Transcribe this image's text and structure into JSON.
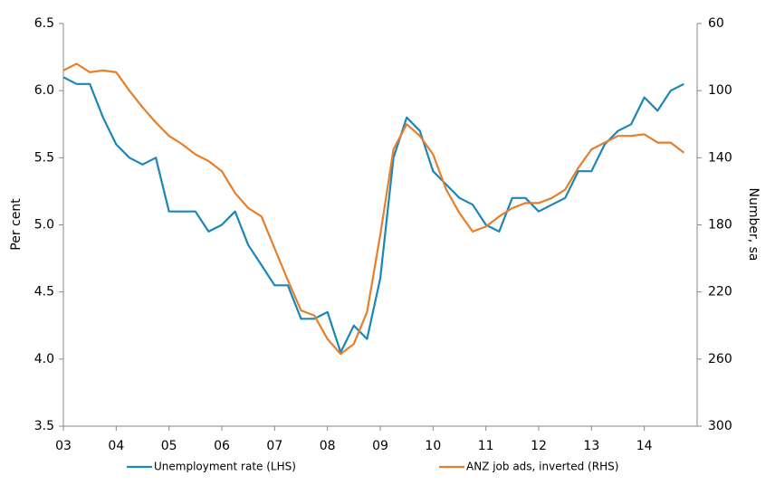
{
  "chart_data": {
    "type": "line",
    "y_label": "Per cent",
    "y2_label": "Number, sa",
    "x": [
      2003,
      2003.25,
      2003.5,
      2003.75,
      2004,
      2004.25,
      2004.5,
      2004.75,
      2005,
      2005.25,
      2005.5,
      2005.75,
      2006,
      2006.25,
      2006.5,
      2006.75,
      2007,
      2007.25,
      2007.5,
      2007.75,
      2008,
      2008.25,
      2008.5,
      2008.75,
      2009,
      2009.25,
      2009.5,
      2009.75,
      2010,
      2010.25,
      2010.5,
      2010.75,
      2011,
      2011.25,
      2011.5,
      2011.75,
      2012,
      2012.25,
      2012.5,
      2012.75,
      2013,
      2013.25,
      2013.5,
      2013.75,
      2014,
      2014.25,
      2014.5,
      2014.75
    ],
    "series": [
      {
        "name": "Unemployment rate (LHS)",
        "color": "#1b86b8",
        "axis": "y",
        "values": [
          6.1,
          6.05,
          6.05,
          5.8,
          5.6,
          5.5,
          5.45,
          5.5,
          5.1,
          5.1,
          5.1,
          4.95,
          5.0,
          5.1,
          4.85,
          4.7,
          4.55,
          4.55,
          4.3,
          4.3,
          4.35,
          4.05,
          4.25,
          4.15,
          4.6,
          5.5,
          5.8,
          5.7,
          5.4,
          5.3,
          5.2,
          5.15,
          5.0,
          4.95,
          5.2,
          5.2,
          5.1,
          5.15,
          5.2,
          5.4,
          5.4,
          5.6,
          5.7,
          5.75,
          5.95,
          5.85,
          6.0,
          6.05
        ]
      },
      {
        "name": "ANZ job ads, inverted (RHS)",
        "color": "#e57f2c",
        "axis": "y2",
        "values": [
          88,
          84,
          89,
          88,
          89,
          100,
          110,
          119,
          127,
          132,
          138,
          142,
          148,
          161,
          170,
          175,
          194,
          213,
          231,
          234,
          248,
          257,
          251,
          232,
          186,
          135,
          120,
          127,
          138,
          159,
          173,
          184,
          181,
          175,
          170,
          167,
          167,
          164,
          159,
          146,
          135,
          131,
          127,
          127,
          126,
          131,
          131,
          137
        ]
      }
    ],
    "xlim": [
      2003,
      2015
    ],
    "xticks": [
      {
        "value": 2003,
        "label": "03"
      },
      {
        "value": 2004,
        "label": "04"
      },
      {
        "value": 2005,
        "label": "05"
      },
      {
        "value": 2006,
        "label": "06"
      },
      {
        "value": 2007,
        "label": "07"
      },
      {
        "value": 2008,
        "label": "08"
      },
      {
        "value": 2009,
        "label": "09"
      },
      {
        "value": 2010,
        "label": "10"
      },
      {
        "value": 2011,
        "label": "11"
      },
      {
        "value": 2012,
        "label": "12"
      },
      {
        "value": 2013,
        "label": "13"
      },
      {
        "value": 2014,
        "label": "14"
      }
    ],
    "ylim": [
      3.5,
      6.5
    ],
    "yticks": [
      3.5,
      {
        "value": 4,
        "label": "4.0"
      },
      4.5,
      {
        "value": 5,
        "label": "5.0"
      },
      5.5,
      {
        "value": 6,
        "label": "6.0"
      },
      6.5
    ],
    "y2lim": [
      300,
      60
    ],
    "y2ticks": [
      300,
      260,
      220,
      180,
      140,
      100,
      60
    ],
    "legend": "bottom"
  }
}
